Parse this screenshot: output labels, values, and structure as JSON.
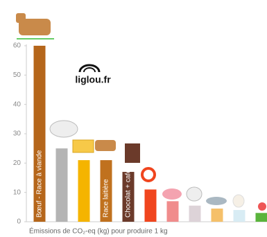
{
  "chart_data": {
    "type": "bar",
    "title": "Émissions de CO₂-eq (kg) pour produire 1 kg",
    "watermark": "liglou.fr",
    "categories": [
      "Bœuf - Race à viande",
      null,
      null,
      "Race laitière",
      "Chocolat + café",
      null,
      null,
      null,
      null,
      null,
      null
    ],
    "values": [
      60,
      25,
      21,
      21,
      17,
      11,
      7,
      5.5,
      4.5,
      4,
      3
    ],
    "colors": [
      "#b5661b",
      "#b4b4b4",
      "#f5b400",
      "#c0711e",
      "#6b3a2a",
      "#f0451e",
      "#f08c8c",
      "#ddd3d8",
      "#f5c06a",
      "#d8ecf4",
      "#5ab43c"
    ],
    "ylim": [
      0,
      60
    ],
    "yticks": [
      0,
      10,
      20,
      30,
      40,
      50,
      60
    ],
    "grid": false
  }
}
